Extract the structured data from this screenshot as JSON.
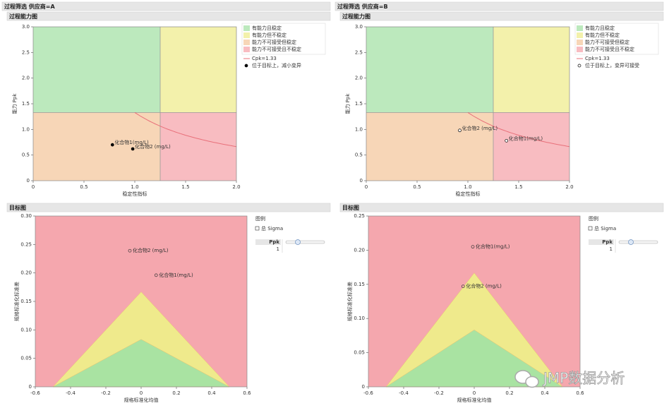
{
  "panels": [
    {
      "title": "过程筛选 供应商=A",
      "capability": {
        "type": "scatter",
        "title": "过程能力图",
        "xlabel": "稳定性指标",
        "ylabel": "能力 Ppk",
        "xlim": [
          0,
          2
        ],
        "ylim": [
          0,
          3
        ],
        "xticks": [
          0,
          0.5,
          {
            "value": 1,
            "label": "1.0"
          },
          1.5,
          {
            "value": 2,
            "label": "2.0"
          }
        ],
        "yticks": [
          0,
          0.5,
          {
            "value": 1,
            "label": "1.0"
          },
          1.5,
          {
            "value": 2,
            "label": "2.0"
          },
          2.5,
          {
            "value": 3,
            "label": "3.0"
          }
        ],
        "stability_limit": 1.25,
        "ppk_limit": 1.33,
        "regions": [
          {
            "name": "有能力且稳定",
            "color": "#bce9bd"
          },
          {
            "name": "有能力但不稳定",
            "color": "#f3f1ab"
          },
          {
            "name": "能力不可接受但稳定",
            "color": "#f7d6b7"
          },
          {
            "name": "能力不可接受且不稳定",
            "color": "#f8bcc1"
          }
        ],
        "cpk": {
          "value": 1.33,
          "label": "Cpk=1.33",
          "color": "#e8707a"
        },
        "marker": {
          "label": "位于目标上，减小变异",
          "filled": true
        },
        "points": [
          {
            "name": "化合物1(mg/L)",
            "x": 0.78,
            "y": 0.7
          },
          {
            "name": "化合物2 (mg/L)",
            "x": 0.98,
            "y": 0.62
          }
        ]
      },
      "target": {
        "type": "scatter",
        "title": "目标图",
        "xlabel": "规格标准化均值",
        "ylabel": "规格标准化标准差",
        "xlim": [
          -0.6,
          0.6
        ],
        "ylim": [
          0,
          0.3
        ],
        "xticks": [
          -0.6,
          -0.4,
          -0.2,
          0,
          0.2,
          0.4,
          0.6
        ],
        "yticks": [
          0,
          0.05,
          {
            "value": 0.1,
            "label": "0.10"
          },
          0.15,
          {
            "value": 0.2,
            "label": "0.20"
          },
          0.25,
          {
            "value": 0.3,
            "label": "0.30"
          }
        ],
        "spec_half_width": 0.5,
        "colors": [
          "#f5a7ae",
          "#efea8c",
          "#a9e3a2"
        ],
        "legend_title": "图例",
        "sigma_label": "总 Sigma",
        "ppk_header": "Ppk",
        "ppk": 1,
        "points": [
          {
            "name": "化合物2 (mg/L)",
            "x": -0.064,
            "y": 0.239
          },
          {
            "name": "化合物1(mg/L)",
            "x": 0.085,
            "y": 0.196
          }
        ]
      }
    },
    {
      "title": "过程筛选 供应商=B",
      "capability": {
        "type": "scatter",
        "title": "过程能力图",
        "xlabel": "稳定性指标",
        "ylabel": "能力 Ppk",
        "xlim": [
          0,
          2
        ],
        "ylim": [
          0,
          3
        ],
        "xticks": [
          0,
          0.5,
          {
            "value": 1,
            "label": "1.0"
          },
          1.5,
          {
            "value": 2,
            "label": "2.0"
          }
        ],
        "yticks": [
          0,
          0.5,
          {
            "value": 1,
            "label": "1.0"
          },
          1.5,
          {
            "value": 2,
            "label": "2.0"
          },
          2.5,
          {
            "value": 3,
            "label": "3.0"
          }
        ],
        "stability_limit": 1.25,
        "ppk_limit": 1.33,
        "regions": [
          {
            "name": "有能力且稳定",
            "color": "#bce9bd"
          },
          {
            "name": "有能力但不稳定",
            "color": "#f3f1ab"
          },
          {
            "name": "能力不可接受但稳定",
            "color": "#f7d6b7"
          },
          {
            "name": "能力不可接受且不稳定",
            "color": "#f8bcc1"
          }
        ],
        "cpk": {
          "value": 1.33,
          "label": "Cpk=1.33",
          "color": "#e8707a"
        },
        "marker": {
          "label": "位于目标上，变异可接受",
          "filled": false
        },
        "points": [
          {
            "name": "化合物2 (mg/L)",
            "x": 0.92,
            "y": 0.98
          },
          {
            "name": "化合物1(mg/L)",
            "x": 1.38,
            "y": 0.78
          }
        ]
      },
      "target": {
        "type": "scatter",
        "title": "目标图",
        "xlabel": "规格标准化均值",
        "ylabel": "规格标准化标准差",
        "xlim": [
          -0.6,
          0.6
        ],
        "ylim": [
          0,
          0.25
        ],
        "xticks": [
          -0.6,
          -0.4,
          -0.2,
          0,
          0.2,
          0.4,
          0.6
        ],
        "yticks": [
          0,
          0.05,
          {
            "value": 0.1,
            "label": "0.10"
          },
          0.15,
          {
            "value": 0.2,
            "label": "0.20"
          },
          0.25
        ],
        "spec_half_width": 0.5,
        "colors": [
          "#f5a7ae",
          "#efea8c",
          "#a9e3a2"
        ],
        "legend_title": "图例",
        "sigma_label": "总 Sigma",
        "ppk_header": "Ppk",
        "ppk": 1,
        "points": [
          {
            "name": "化合物1(mg/L)",
            "x": -0.008,
            "y": 0.205
          },
          {
            "name": "化合物2 (mg/L)",
            "x": -0.063,
            "y": 0.147
          }
        ]
      }
    }
  ],
  "watermark": "JMP数据分析"
}
